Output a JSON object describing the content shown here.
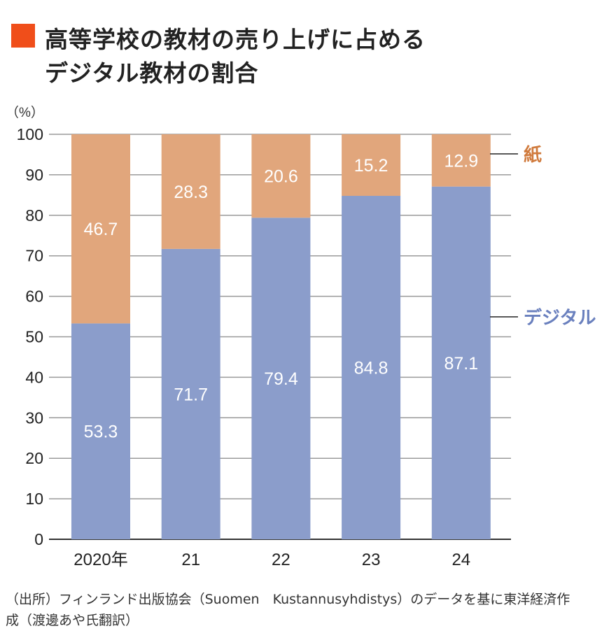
{
  "title_lines": [
    "高等学校の教材の売り上げに占める",
    "デジタル教材の割合"
  ],
  "colors": {
    "title_marker": "#F04E1A",
    "paper": "#E1A67C",
    "digital": "#8B9DCB",
    "paper_label": "#D07A3C",
    "digital_label": "#6A80BE",
    "grid": "#9a9a9a"
  },
  "chart_data": {
    "type": "bar",
    "stacked": true,
    "categories": [
      "2020年",
      "21",
      "22",
      "23",
      "24"
    ],
    "series": [
      {
        "name": "デジタル",
        "values": [
          53.3,
          71.7,
          79.4,
          84.8,
          87.1
        ]
      },
      {
        "name": "紙",
        "values": [
          46.7,
          28.3,
          20.6,
          15.2,
          12.9
        ]
      }
    ],
    "ylabel": "（%）",
    "ylim": [
      0,
      100
    ],
    "yticks": [
      0,
      10,
      20,
      30,
      40,
      50,
      60,
      70,
      80,
      90,
      100
    ],
    "grid": true,
    "legend": "right"
  },
  "notes": [
    "（出所）フィンランド出版協会（Suomen　Kustannusyhdistys）のデータを基に東洋経済作",
    "成（渡邊あや氏翻訳）"
  ]
}
